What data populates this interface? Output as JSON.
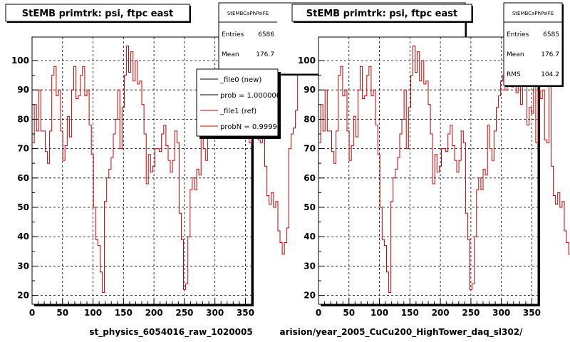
{
  "footnote": "",
  "chart_data": [
    {
      "type": "line",
      "title": "StEMB primtrk: psi, ftpc east",
      "xlabel": "st_physics_6054016_raw_1020005",
      "xlim": [
        0,
        360
      ],
      "ylim": [
        17,
        108
      ],
      "x_ticks": [
        "0",
        "50",
        "100",
        "150",
        "200",
        "250",
        "300",
        "350"
      ],
      "y_ticks": [
        "20",
        "30",
        "40",
        "50",
        "60",
        "70",
        "80",
        "90",
        "100"
      ],
      "grid": true,
      "bin_width": 3.6,
      "stats": {
        "name": "StEMBCaPhPsiFE",
        "entries_label": "Entries",
        "entries": "6586",
        "mean_label": "Mean",
        "mean": "176.7"
      },
      "legend": {
        "position": "top-right",
        "entries": [
          "_file0 (new)",
          "prob = 1.000000",
          "_file1 (ref)",
          "probN = 0.99997"
        ],
        "colors": [
          "#000000",
          "#000000",
          "#cc0000",
          "#cc0000"
        ]
      },
      "series": [
        {
          "color": "#cc0000",
          "values": [
            72,
            85,
            76,
            90,
            76,
            76,
            69,
            65,
            76,
            95,
            98,
            88,
            90,
            76,
            66,
            71,
            81,
            74,
            90,
            98,
            87,
            88,
            95,
            98,
            88,
            90,
            78,
            68,
            50,
            39,
            37,
            28,
            21,
            52,
            60,
            63,
            67,
            75,
            80,
            90,
            70,
            84,
            95,
            105,
            96,
            103,
            93,
            100,
            92,
            93,
            85,
            75,
            58,
            68,
            62,
            64,
            70,
            70,
            69,
            75,
            78,
            71,
            66,
            62,
            66,
            76,
            72,
            48,
            39,
            22,
            24,
            40,
            56,
            60,
            56,
            63,
            61,
            78,
            70,
            66,
            76,
            84,
            88,
            93,
            95,
            90,
            99,
            99,
            91,
            97,
            89,
            94,
            85,
            100,
            92,
            78,
            84,
            82,
            96,
            72,
            90,
            87,
            90,
            73,
            72,
            92,
            64,
            54,
            51,
            55,
            50,
            52,
            42,
            38,
            34,
            38,
            43,
            70,
            75,
            77,
            83,
            96,
            100
          ]
        }
      ]
    },
    {
      "type": "line",
      "title": "StEMB primtrk: psi, ftpc east",
      "xlabel": "arision/year_2005_CuCu200_HighTower_daq_sl302/",
      "xlim": [
        0,
        360
      ],
      "ylim": [
        17,
        108
      ],
      "x_ticks": [
        "0",
        "50",
        "100",
        "150",
        "200",
        "250",
        "300",
        "350"
      ],
      "y_ticks": [
        "20",
        "30",
        "40",
        "50",
        "60",
        "70",
        "80",
        "90",
        "100"
      ],
      "grid": true,
      "bin_width": 3.6,
      "stats": {
        "name": "StEMBCaPhPsiFE",
        "entries_label": "Entries",
        "entries": "6585",
        "mean_label": "Mean",
        "mean": "176.7",
        "rms_label": "RMS",
        "rms": "104.2"
      },
      "series": [
        {
          "color": "#cc0000",
          "values": [
            72,
            85,
            76,
            90,
            76,
            76,
            69,
            65,
            76,
            95,
            98,
            88,
            90,
            76,
            66,
            71,
            81,
            74,
            90,
            98,
            87,
            88,
            95,
            98,
            88,
            90,
            78,
            68,
            50,
            39,
            37,
            28,
            21,
            52,
            60,
            63,
            67,
            75,
            80,
            90,
            70,
            84,
            95,
            105,
            96,
            103,
            93,
            100,
            92,
            93,
            85,
            75,
            58,
            68,
            62,
            64,
            70,
            70,
            69,
            75,
            78,
            71,
            66,
            62,
            66,
            76,
            72,
            48,
            39,
            22,
            24,
            40,
            56,
            60,
            56,
            63,
            61,
            78,
            70,
            66,
            76,
            84,
            88,
            93,
            95,
            90,
            99,
            99,
            91,
            97,
            89,
            94,
            85,
            100,
            92,
            78,
            84,
            82,
            96,
            72,
            90,
            87,
            90,
            73,
            72,
            92,
            64,
            54,
            51,
            55,
            50,
            52,
            42,
            38,
            34,
            38,
            43,
            70,
            75,
            77,
            83,
            96,
            100
          ]
        }
      ]
    }
  ]
}
